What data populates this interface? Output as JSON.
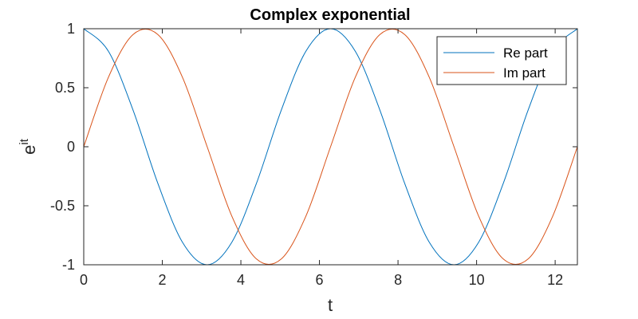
{
  "chart_data": {
    "type": "line",
    "title": "Complex exponential",
    "xlabel": "t",
    "ylabel_base": "e",
    "ylabel_sup": "it",
    "xlim": [
      0,
      12.566
    ],
    "ylim": [
      -1,
      1
    ],
    "xticks": [
      0,
      2,
      4,
      6,
      8,
      10,
      12
    ],
    "xtick_labels": [
      "0",
      "2",
      "4",
      "6",
      "8",
      "10",
      "12"
    ],
    "yticks": [
      -1,
      -0.5,
      0,
      0.5,
      1
    ],
    "ytick_labels": [
      "-1",
      "-0.5",
      "0",
      "0.5",
      "1"
    ],
    "grid": false,
    "legend_position": "top-right",
    "x": [
      0,
      0.628,
      1.257,
      1.885,
      2.513,
      3.142,
      3.77,
      4.398,
      5.027,
      5.655,
      6.283,
      6.912,
      7.54,
      8.168,
      8.796,
      9.425,
      10.053,
      10.681,
      11.31,
      11.938,
      12.566
    ],
    "series": [
      {
        "name": "Re part",
        "color": "#0072BD",
        "values": [
          1,
          0.809,
          0.309,
          -0.309,
          -0.809,
          -1,
          -0.809,
          -0.309,
          0.309,
          0.809,
          1,
          0.809,
          0.309,
          -0.309,
          -0.809,
          -1,
          -0.809,
          -0.309,
          0.309,
          0.809,
          1
        ]
      },
      {
        "name": "Im part",
        "color": "#D95319",
        "values": [
          0,
          0.588,
          0.951,
          0.951,
          0.588,
          0,
          -0.588,
          -0.951,
          -0.951,
          -0.588,
          0,
          0.588,
          0.951,
          0.951,
          0.588,
          0,
          -0.588,
          -0.951,
          -0.951,
          -0.588,
          0
        ]
      }
    ]
  }
}
